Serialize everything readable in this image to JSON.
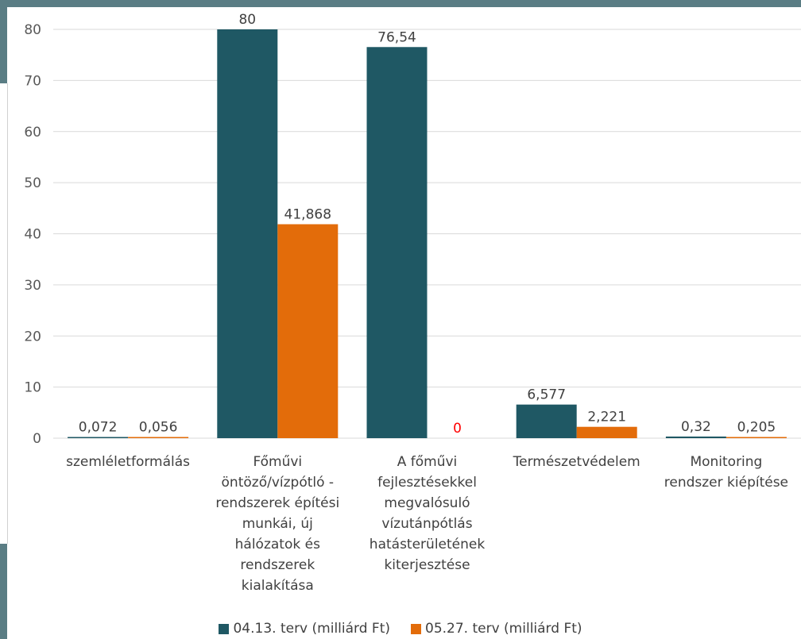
{
  "chart_data": {
    "type": "bar",
    "categories": [
      [
        "szemléletformálás"
      ],
      [
        "Főművi",
        "öntöző/vízpótló -",
        "rendszerek építési",
        "munkái, új",
        "hálózatok és",
        "rendszerek",
        "kialakítása"
      ],
      [
        "A főművi",
        "fejlesztésekkel",
        "megvalósuló",
        "vízutánpótlás",
        "hatásterületének",
        "kiterjesztése"
      ],
      [
        "Természetvédelem"
      ],
      [
        "Monitoring",
        "rendszer kiépítése"
      ]
    ],
    "series": [
      {
        "name": "04.13. terv (milliárd Ft)",
        "color": "#1f5864",
        "values": [
          0.072,
          80,
          76.54,
          6.577,
          0.32
        ],
        "labels": [
          "0,072",
          "80",
          "76,54",
          "6,577",
          "0,32"
        ],
        "label_colors": [
          "#404040",
          "#404040",
          "#404040",
          "#404040",
          "#404040"
        ]
      },
      {
        "name": "05.27. terv (milliárd Ft)",
        "color": "#e36c0a",
        "values": [
          0.056,
          41.868,
          0,
          2.221,
          0.205
        ],
        "labels": [
          "0,056",
          "41,868",
          "0",
          "2,221",
          "0,205"
        ],
        "label_colors": [
          "#404040",
          "#404040",
          "#ff0000",
          "#404040",
          "#404040"
        ]
      }
    ],
    "ylim": [
      0,
      80
    ],
    "yticks": [
      0,
      10,
      20,
      30,
      40,
      50,
      60,
      70,
      80
    ],
    "grid": true,
    "legend_position": "bottom",
    "title": "",
    "xlabel": "",
    "ylabel": ""
  }
}
